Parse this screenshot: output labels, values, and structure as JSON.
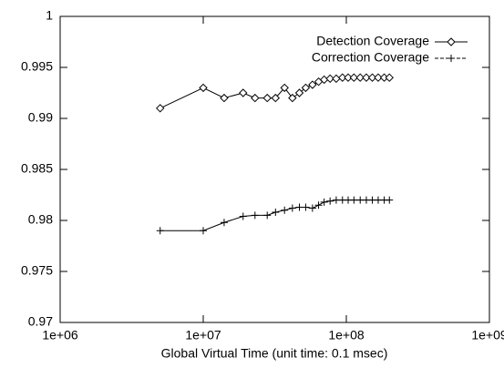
{
  "chart_data": {
    "type": "line",
    "x_label": "Global Virtual Time (unit time: 0.1 msec)",
    "xscale": "log",
    "xlim": [
      1000000,
      1000000000
    ],
    "xticks": [
      {
        "value": 1000000,
        "label": "1e+06"
      },
      {
        "value": 10000000,
        "label": "1e+07"
      },
      {
        "value": 100000000,
        "label": "1e+08"
      },
      {
        "value": 1000000000,
        "label": "1e+09"
      }
    ],
    "ylim": [
      0.97,
      1
    ],
    "yticks": [
      0.97,
      0.975,
      0.98,
      0.985,
      0.99,
      0.995,
      1
    ],
    "legend": "top-right",
    "x": [
      5000000,
      10000000,
      14000000,
      19000000,
      23000000,
      28000000,
      32000000,
      37000000,
      42000000,
      47000000,
      52000000,
      58000000,
      64000000,
      70000000,
      77000000,
      85000000,
      94000000,
      103000000,
      113000000,
      125000000,
      138000000,
      152000000,
      167000000,
      184000000,
      200000000
    ],
    "series": [
      {
        "name": "Detection Coverage",
        "color": "#000000",
        "marker": "diamond",
        "values": [
          0.991,
          0.993,
          0.992,
          0.9925,
          0.992,
          0.992,
          0.992,
          0.993,
          0.992,
          0.9925,
          0.993,
          0.9933,
          0.9936,
          0.9938,
          0.9939,
          0.9939,
          0.994,
          0.994,
          0.994,
          0.994,
          0.994,
          0.994,
          0.994,
          0.994,
          0.994
        ]
      },
      {
        "name": "Correction Coverage",
        "color": "#000000",
        "marker": "plus",
        "values": [
          0.979,
          0.979,
          0.9798,
          0.9804,
          0.9805,
          0.9805,
          0.9808,
          0.981,
          0.9812,
          0.9813,
          0.9813,
          0.9812,
          0.9815,
          0.9818,
          0.9819,
          0.982,
          0.982,
          0.982,
          0.982,
          0.982,
          0.982,
          0.982,
          0.982,
          0.982,
          0.982
        ]
      }
    ]
  }
}
